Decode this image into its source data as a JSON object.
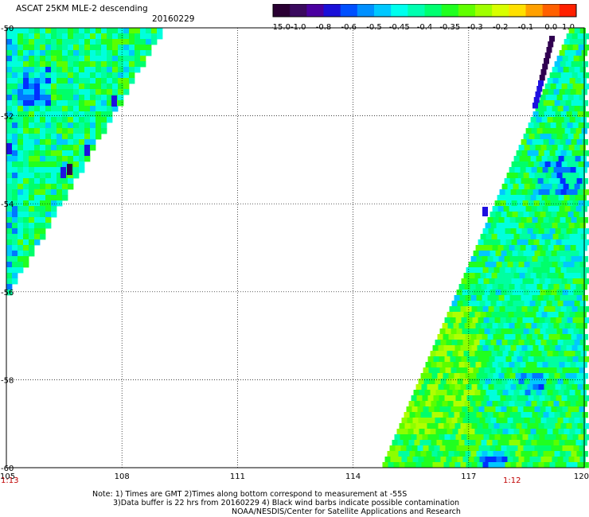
{
  "header": {
    "title": "ASCAT 25KM MLE-2 descending",
    "date": "20160229"
  },
  "colorbar": {
    "tick_labels": [
      "-15.0",
      "-1.0",
      "-0.8",
      "-0.6",
      "-0.5",
      "-0.45",
      "-0.4",
      "-0.35",
      "-0.3",
      "-0.2",
      "-0.1",
      "0.0",
      "1.0"
    ],
    "colors": [
      "#2a0033",
      "#3a0a5e",
      "#4a00a0",
      "#1a10d8",
      "#0050ff",
      "#0090ff",
      "#00c8ff",
      "#00ffee",
      "#00ffb0",
      "#00ff70",
      "#20ff20",
      "#60ff00",
      "#a0ff00",
      "#d8ff00",
      "#ffe000",
      "#ffa000",
      "#ff6000",
      "#ff2000"
    ]
  },
  "map": {
    "lat_labels": [
      "-50",
      "-52",
      "-54",
      "-56",
      "-58",
      "-60"
    ],
    "lon_labels": [
      "105",
      "108",
      "111",
      "114",
      "117",
      "120"
    ],
    "time_left": "1:13",
    "time_right": "1:12",
    "swath_west": {
      "lon_range": [
        105,
        109
      ],
      "lat_range": [
        -50,
        -56
      ]
    },
    "swath_east": {
      "lon_range": [
        114.7,
        120
      ],
      "lat_range": [
        -50,
        -60
      ]
    }
  },
  "footer": {
    "note_line1": "Note: 1) Times are GMT 2)Times along bottom correspond to measurement at -55S",
    "note_line2": "3)Data buffer is 22 hrs from 20160229 4) Black wind barbs indicate possible contamination",
    "credit": "NOAA/NESDIS/Center for Satellite Applications and Research"
  }
}
